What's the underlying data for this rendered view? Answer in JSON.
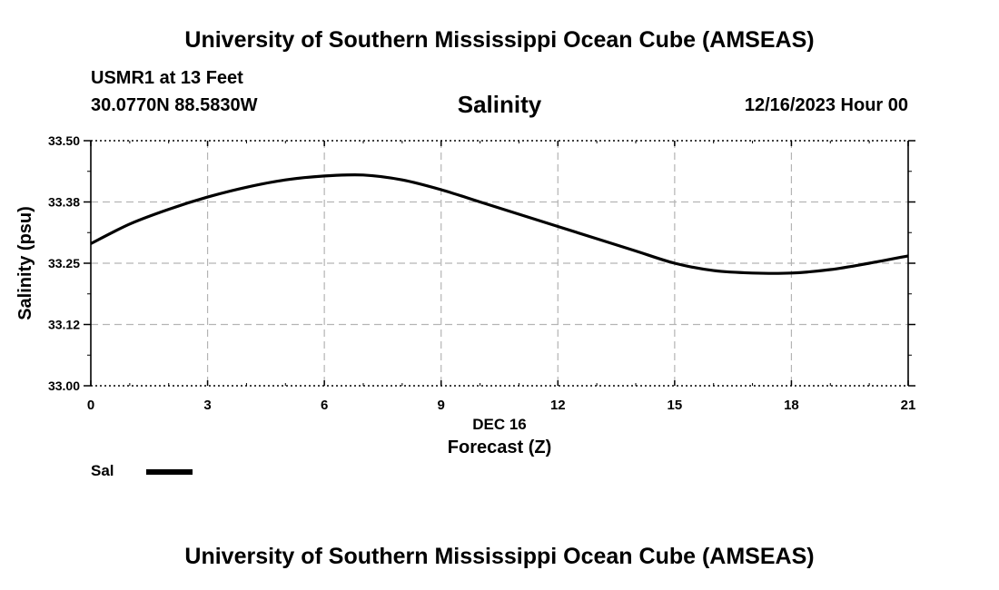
{
  "page_title": "University of Southern Mississippi Ocean Cube (AMSEAS)",
  "footer_title": "University of Southern Mississippi Ocean Cube (AMSEAS)",
  "station": "USMR1 at 13 Feet",
  "coordinates": "30.0770N  88.5830W",
  "datetime": "12/16/2023 Hour 00",
  "legend": {
    "label": "Sal"
  },
  "chart_data": {
    "type": "line",
    "title": "Salinity",
    "xlabel": "Forecast (Z)",
    "date_label": "DEC 16",
    "ylabel": "Salinity (psu)",
    "xlim": [
      0,
      21
    ],
    "ylim": [
      33.0,
      33.5
    ],
    "x_ticks": [
      0,
      3,
      6,
      9,
      12,
      15,
      18,
      21
    ],
    "x_tick_labels": [
      "0",
      "3",
      "6",
      "9",
      "12",
      "15",
      "18",
      "21"
    ],
    "y_ticks": [
      33.0,
      33.125,
      33.25,
      33.375,
      33.5
    ],
    "y_tick_labels": [
      "33.00",
      "33.12",
      "33.25",
      "33.38",
      "33.50"
    ],
    "grid": true,
    "series": [
      {
        "name": "Sal",
        "x": [
          0,
          1,
          2,
          3,
          4,
          5,
          6,
          7,
          8,
          9,
          10,
          11,
          12,
          13,
          14,
          15,
          16,
          17,
          18,
          19,
          20,
          21
        ],
        "values": [
          33.29,
          33.33,
          33.36,
          33.385,
          33.405,
          33.42,
          33.428,
          33.43,
          33.42,
          33.4,
          33.375,
          33.35,
          33.325,
          33.3,
          33.275,
          33.25,
          33.235,
          33.23,
          33.23,
          33.237,
          33.25,
          33.265
        ]
      }
    ]
  }
}
